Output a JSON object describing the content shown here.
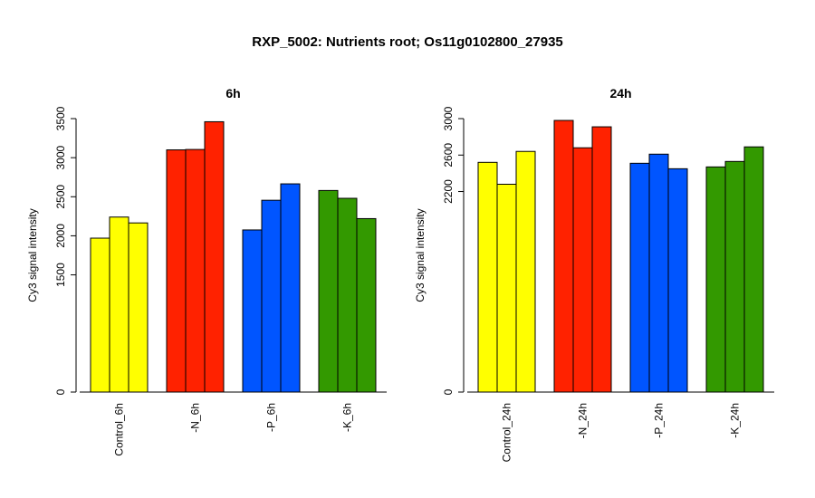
{
  "title": "RXP_5002: Nutrients root; Os11g0102800_27935",
  "chart_data": [
    {
      "type": "bar",
      "title": "6h",
      "ylabel": "Cy3 signal intensity",
      "ylim": [
        0,
        3500
      ],
      "yticks": [
        0,
        1500,
        2000,
        2500,
        3000,
        3500
      ],
      "categories": [
        "Control_6h",
        "-N_6h",
        "-P_6h",
        "-K_6h"
      ],
      "colors": [
        "#ffff00",
        "#ff2200",
        "#0055ff",
        "#339900"
      ],
      "values": [
        [
          1970,
          2240,
          2165
        ],
        [
          3100,
          3105,
          3460
        ],
        [
          2075,
          2455,
          2665
        ],
        [
          2580,
          2480,
          2220
        ]
      ]
    },
    {
      "type": "bar",
      "title": "24h",
      "ylabel": "Cy3 signal intensity",
      "ylim": [
        0,
        3000
      ],
      "yticks": [
        0,
        2200,
        2600,
        3000
      ],
      "categories": [
        "Control_24h",
        "-N_24h",
        "-P_24h",
        "-K_24h"
      ],
      "colors": [
        "#ffff00",
        "#ff2200",
        "#0055ff",
        "#339900"
      ],
      "values": [
        [
          2520,
          2280,
          2640
        ],
        [
          2980,
          2680,
          2910
        ],
        [
          2510,
          2610,
          2450
        ],
        [
          2470,
          2530,
          2690
        ]
      ]
    }
  ]
}
